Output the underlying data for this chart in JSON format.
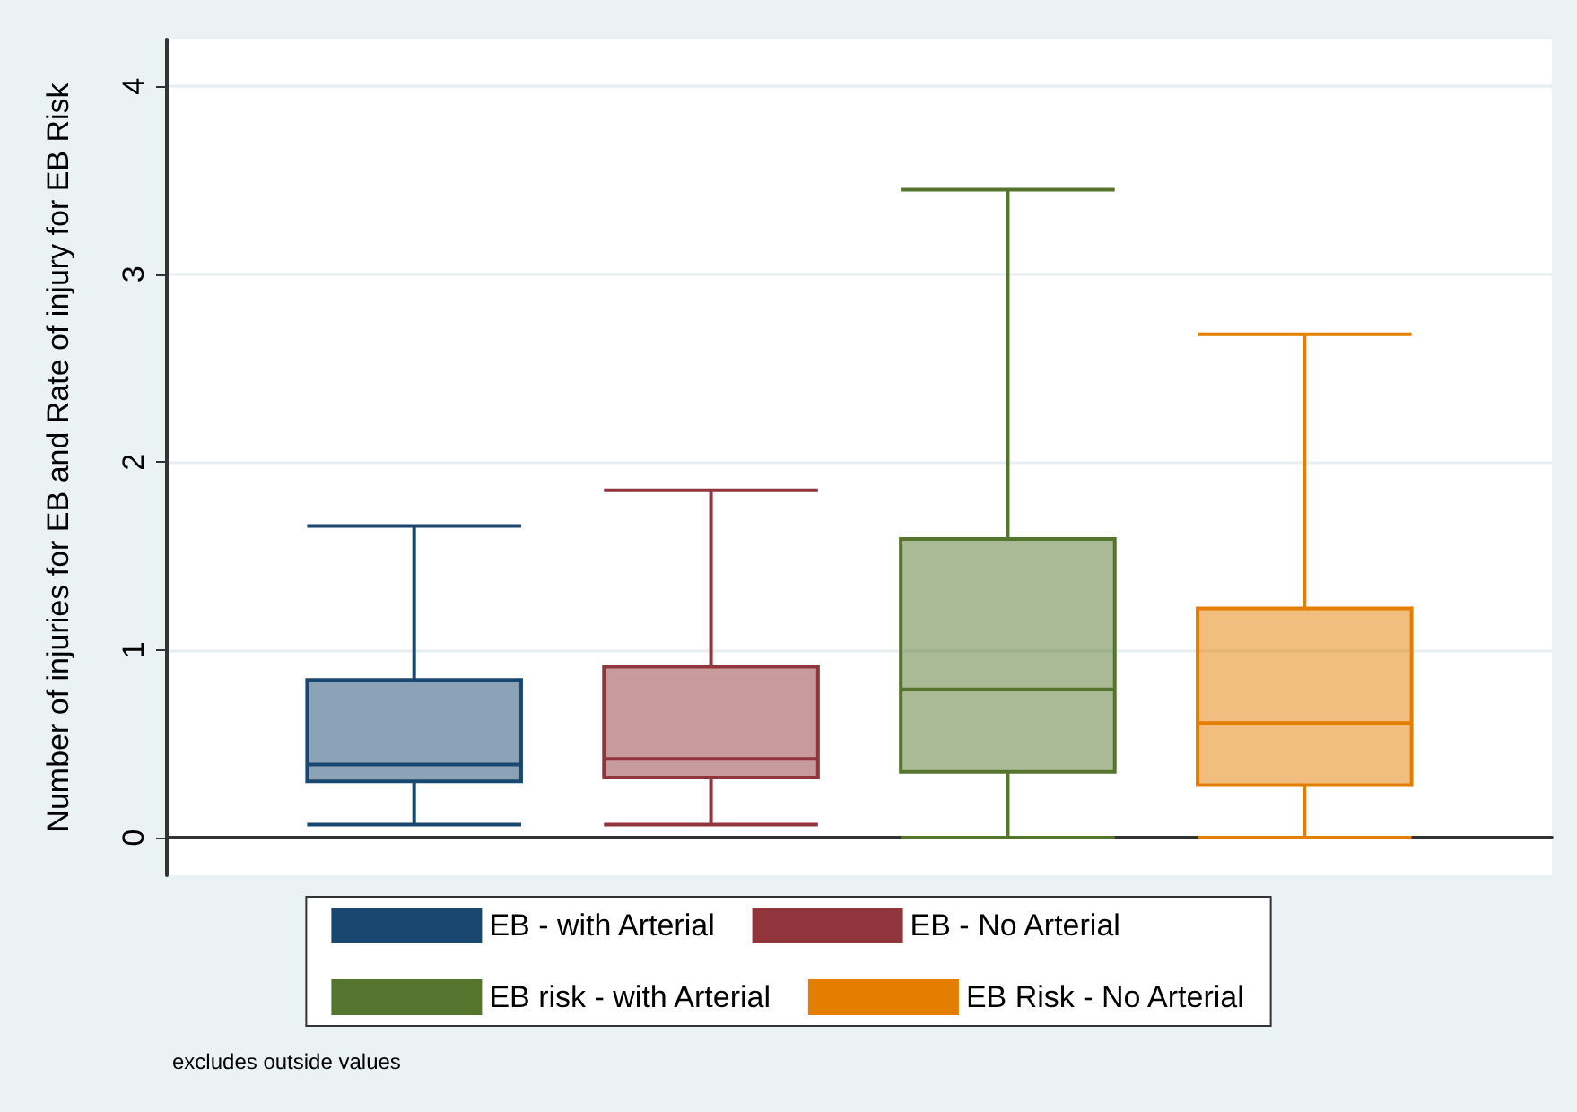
{
  "chart_data": {
    "type": "box",
    "ylabel": "Number of injuries for EB and Rate of injury for EB Risk",
    "categories": [
      null
    ],
    "series": [
      {
        "name": "EB - with Arterial",
        "color": "#1a476f",
        "boxes": [
          {
            "low": 0.07,
            "q1": 0.3,
            "median": 0.39,
            "q3": 0.84,
            "high": 1.66
          }
        ]
      },
      {
        "name": "EB - No Arterial",
        "color": "#90353b",
        "boxes": [
          {
            "low": 0.07,
            "q1": 0.32,
            "median": 0.42,
            "q3": 0.91,
            "high": 1.85
          }
        ]
      },
      {
        "name": "EB risk - with Arterial",
        "color": "#55752f",
        "boxes": [
          {
            "low": 0,
            "q1": 0.35,
            "median": 0.79,
            "q3": 1.59,
            "high": 3.45
          }
        ]
      },
      {
        "name": "EB Risk - No Arterial",
        "color": "#e37e00",
        "boxes": [
          {
            "low": 0,
            "q1": 0.28,
            "median": 0.61,
            "q3": 1.22,
            "high": 2.68
          }
        ]
      }
    ],
    "ylim": [
      -0.2,
      4.25
    ],
    "yticks": [
      0,
      1,
      2,
      3,
      4
    ],
    "grid": "y",
    "legend": "bottom",
    "annotations": [
      "excludes outside values"
    ]
  }
}
